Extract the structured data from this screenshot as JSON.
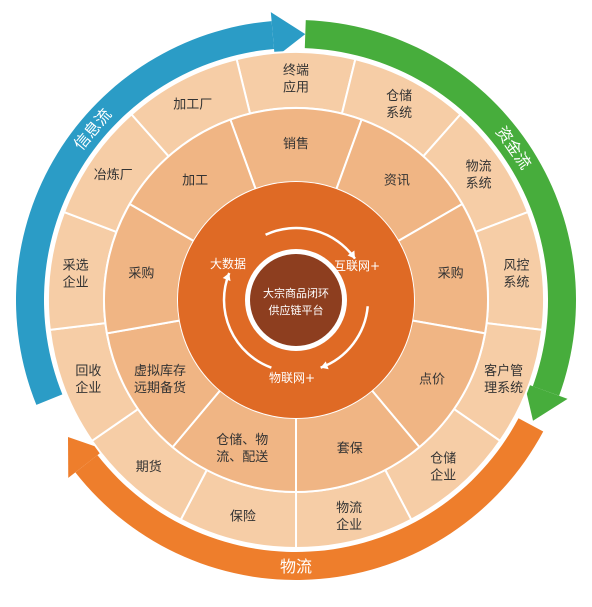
{
  "colors": {
    "outer_ring": "#f6cda6",
    "middle_ring": "#f0b584",
    "inner_ring": "#df6a25",
    "core": "#8d3e1f",
    "separator": "#ffffff",
    "arc_info": "#2b9cc6",
    "arc_capital": "#47ad3c",
    "arc_logistics": "#ee7e2c",
    "text_dark": "#333333",
    "text_light": "#ffffff"
  },
  "core": {
    "line1": "大宗商品闭环",
    "line2": "供应链平台"
  },
  "inner_ring": {
    "big_data": "大数据",
    "internet_plus": "互联网+",
    "iot_plus": "物联网+"
  },
  "middle_ring": [
    {
      "lines": [
        "销售"
      ]
    },
    {
      "lines": [
        "资讯"
      ]
    },
    {
      "lines": [
        "采购"
      ]
    },
    {
      "lines": [
        "点价"
      ]
    },
    {
      "lines": [
        "套保"
      ]
    },
    {
      "lines": [
        "仓储、物",
        "流、配送"
      ]
    },
    {
      "lines": [
        "虚拟库存",
        "远期备货"
      ]
    },
    {
      "lines": [
        "采购"
      ]
    },
    {
      "lines": [
        "加工"
      ]
    }
  ],
  "outer_ring": [
    {
      "lines": [
        "终端",
        "应用"
      ]
    },
    {
      "lines": [
        "仓储",
        "系统"
      ]
    },
    {
      "lines": [
        "物流",
        "系统"
      ]
    },
    {
      "lines": [
        "风控",
        "系统"
      ]
    },
    {
      "lines": [
        "客户管",
        "理系统"
      ]
    },
    {
      "lines": [
        "仓储",
        "企业"
      ]
    },
    {
      "lines": [
        "物流",
        "企业"
      ]
    },
    {
      "lines": [
        "保险"
      ]
    },
    {
      "lines": [
        "期货"
      ]
    },
    {
      "lines": [
        "回收",
        "企业"
      ]
    },
    {
      "lines": [
        "采选",
        "企业"
      ]
    },
    {
      "lines": [
        "冶炼厂"
      ]
    },
    {
      "lines": [
        "加工厂"
      ]
    }
  ],
  "outer_arcs": {
    "info_flow": "信息流",
    "capital_flow": "资金流",
    "logistics": "物流"
  }
}
